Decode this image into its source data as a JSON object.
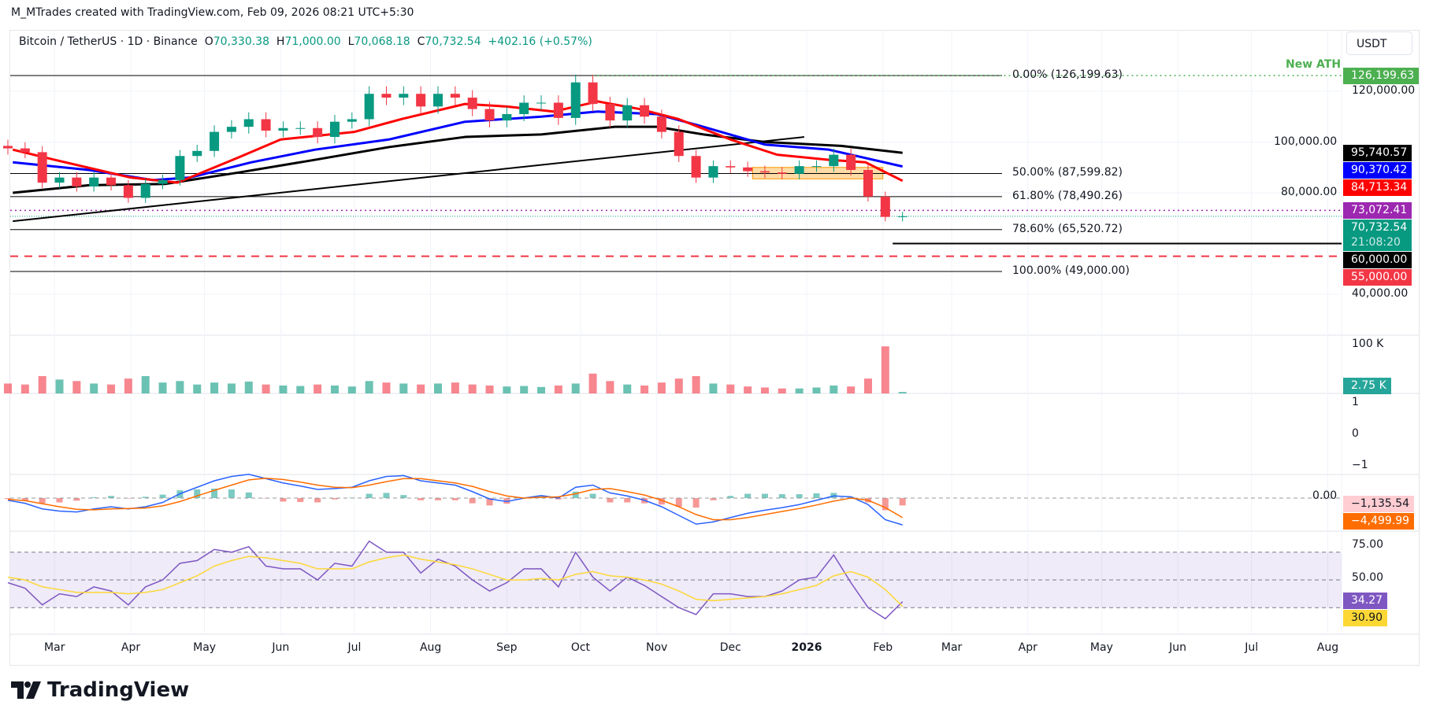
{
  "credit": "M_MTrades created with TradingView.com, Feb 09, 2026 08:21 UTC+5:30",
  "legend": {
    "symbol": "Bitcoin / TetherUS · 1D · Binance",
    "o_label": "O",
    "o": "70,330.38",
    "h_label": "H",
    "h": "71,000.00",
    "l_label": "L",
    "l": "70,068.18",
    "c_label": "C",
    "c": "70,732.54",
    "change": "+402.16 (+0.57%)"
  },
  "currency": "USDT",
  "annotation": "New ATH",
  "logo": "TradingView",
  "price_tags": [
    {
      "text": "126,199.63",
      "price": 126199.63,
      "color": "#4caf50"
    },
    {
      "text": "95,740.57",
      "price": 95740.57,
      "color": "#000000"
    },
    {
      "text": "90,370.42",
      "price": 90370.42,
      "color": "#0000ff"
    },
    {
      "text": "84,713.34",
      "price": 84713.34,
      "color": "#ff0000"
    },
    {
      "text": "73,072.41",
      "price": 73072.41,
      "color": "#9c27b0"
    },
    {
      "text": "70,732.54",
      "price": 70732.54,
      "color": "#089981",
      "sub": "21:08:20"
    },
    {
      "text": "60,000.00",
      "price": 60000,
      "color": "#000000"
    },
    {
      "text": "55,000.00",
      "price": 55000,
      "color": "#f23645"
    }
  ],
  "price_axis": [
    {
      "text": "120,000.00",
      "price": 120000
    },
    {
      "text": "100,000.00",
      "price": 100000
    },
    {
      "text": "80,000.00",
      "price": 80000
    },
    {
      "text": "40,000.00",
      "price": 40000
    }
  ],
  "fib_levels": [
    {
      "text": "0.00% (126,199.63)",
      "price": 126199.63
    },
    {
      "text": "50.00% (87,599.82)",
      "price": 87599.82
    },
    {
      "text": "61.80% (78,490.26)",
      "price": 78490.26
    },
    {
      "text": "78.60% (65,520.72)",
      "price": 65520.72
    },
    {
      "text": "100.00% (49,000.00)",
      "price": 49000
    }
  ],
  "volume_axis": {
    "label": "100 K",
    "tag": "2.75 K",
    "tag_color": "#26a69a"
  },
  "empty_pane_axis": [
    "1",
    "0",
    "−1"
  ],
  "macd_axis": {
    "zero": "0.00",
    "hist_tag": "−1,135.54",
    "hist_color": "#ffcdd2",
    "signal_tag": "−4,499.99",
    "signal_color": "#ff6d00"
  },
  "rsi_axis": {
    "labels": [
      "75.00",
      "50.00"
    ],
    "rsi_tag": "34.27",
    "rsi_color": "#7e57c2",
    "ma_tag": "30.90",
    "ma_color": "#fdd835"
  },
  "months": [
    {
      "text": "Mar",
      "date": "2025-03-01"
    },
    {
      "text": "Apr",
      "date": "2025-04-01"
    },
    {
      "text": "May",
      "date": "2025-05-01"
    },
    {
      "text": "Jun",
      "date": "2025-06-01"
    },
    {
      "text": "Jul",
      "date": "2025-07-01"
    },
    {
      "text": "Aug",
      "date": "2025-08-01"
    },
    {
      "text": "Sep",
      "date": "2025-09-01"
    },
    {
      "text": "Oct",
      "date": "2025-10-01"
    },
    {
      "text": "Nov",
      "date": "2025-11-01"
    },
    {
      "text": "Dec",
      "date": "2025-12-01"
    },
    {
      "text": "2026",
      "date": "2026-01-01",
      "bold": true
    },
    {
      "text": "Feb",
      "date": "2026-02-01"
    },
    {
      "text": "Mar",
      "date": "2026-03-01"
    },
    {
      "text": "Apr",
      "date": "2026-04-01"
    },
    {
      "text": "May",
      "date": "2026-05-01"
    },
    {
      "text": "Jun",
      "date": "2026-06-01"
    },
    {
      "text": "Jul",
      "date": "2026-07-01"
    },
    {
      "text": "Aug",
      "date": "2026-08-01"
    }
  ],
  "chart_data": {
    "type": "candlestick",
    "scale": "linear",
    "ylim": [
      35000,
      130000
    ],
    "up_color": "#089981",
    "down_color": "#f23645",
    "dates": [
      "2025-02-10",
      "2025-02-17",
      "2025-02-24",
      "2025-03-03",
      "2025-03-10",
      "2025-03-17",
      "2025-03-24",
      "2025-03-31",
      "2025-04-07",
      "2025-04-14",
      "2025-04-21",
      "2025-04-28",
      "2025-05-05",
      "2025-05-12",
      "2025-05-19",
      "2025-05-26",
      "2025-06-02",
      "2025-06-09",
      "2025-06-16",
      "2025-06-23",
      "2025-06-30",
      "2025-07-07",
      "2025-07-14",
      "2025-07-21",
      "2025-07-28",
      "2025-08-04",
      "2025-08-11",
      "2025-08-18",
      "2025-08-25",
      "2025-09-01",
      "2025-09-08",
      "2025-09-15",
      "2025-09-22",
      "2025-09-29",
      "2025-10-06",
      "2025-10-13",
      "2025-10-20",
      "2025-10-27",
      "2025-11-03",
      "2025-11-10",
      "2025-11-17",
      "2025-11-24",
      "2025-12-01",
      "2025-12-08",
      "2025-12-15",
      "2025-12-22",
      "2025-12-29",
      "2026-01-05",
      "2026-01-12",
      "2026-01-19",
      "2026-01-26",
      "2026-02-02",
      "2026-02-09"
    ],
    "close": [
      97500,
      96000,
      84000,
      86000,
      82500,
      86000,
      83000,
      78000,
      83500,
      85000,
      94500,
      96500,
      104000,
      106000,
      109000,
      104500,
      105500,
      105500,
      102000,
      108000,
      109000,
      119000,
      117500,
      119000,
      114000,
      119000,
      117500,
      113000,
      108500,
      111000,
      115500,
      115500,
      109500,
      123500,
      115000,
      108500,
      114500,
      110000,
      104000,
      94500,
      86000,
      90500,
      90000,
      88500,
      88000,
      87500,
      90500,
      90500,
      95000,
      89000,
      78500,
      70500,
      70732.54
    ],
    "volume_k": [
      20,
      18,
      35,
      28,
      25,
      20,
      18,
      30,
      35,
      22,
      25,
      18,
      22,
      20,
      24,
      18,
      16,
      15,
      18,
      16,
      14,
      25,
      22,
      20,
      18,
      20,
      22,
      18,
      16,
      14,
      15,
      13,
      16,
      20,
      40,
      25,
      18,
      16,
      22,
      30,
      35,
      20,
      18,
      14,
      12,
      10,
      10,
      12,
      16,
      14,
      30,
      95,
      3
    ],
    "macd": [
      -500,
      -1200,
      -2500,
      -3000,
      -3200,
      -2500,
      -2000,
      -2500,
      -2000,
      -1000,
      1000,
      2500,
      4000,
      5000,
      5500,
      4500,
      3500,
      2800,
      2000,
      2200,
      2500,
      4000,
      5000,
      5200,
      4000,
      3500,
      3000,
      1500,
      -200,
      -800,
      0,
      600,
      0,
      2500,
      3000,
      1200,
      500,
      -500,
      -2000,
      -4000,
      -6000,
      -5500,
      -4500,
      -3500,
      -2800,
      -2200,
      -1500,
      -500,
      500,
      300,
      -1500,
      -5000,
      -6200
    ],
    "macd_signal": [
      -300,
      -600,
      -1300,
      -2000,
      -2600,
      -2700,
      -2500,
      -2400,
      -2300,
      -1800,
      -800,
      500,
      1800,
      3000,
      4200,
      4600,
      4300,
      3700,
      3000,
      2500,
      2400,
      3000,
      3800,
      4500,
      4500,
      4000,
      3500,
      2700,
      1500,
      500,
      0,
      200,
      300,
      1000,
      2000,
      2200,
      1500,
      700,
      -500,
      -2000,
      -3800,
      -5000,
      -5000,
      -4500,
      -3800,
      -3100,
      -2400,
      -1600,
      -700,
      0,
      -500,
      -2200,
      -4500
    ],
    "rsi": [
      48,
      44,
      32,
      40,
      38,
      45,
      42,
      32,
      45,
      50,
      62,
      64,
      72,
      70,
      74,
      60,
      58,
      58,
      50,
      62,
      60,
      78,
      70,
      70,
      55,
      65,
      60,
      50,
      42,
      48,
      58,
      58,
      45,
      70,
      52,
      42,
      52,
      46,
      38,
      30,
      25,
      40,
      40,
      38,
      38,
      42,
      50,
      52,
      68,
      48,
      30,
      22,
      34.27
    ],
    "rsi_ma": [
      52,
      50,
      45,
      43,
      41,
      41,
      41,
      40,
      41,
      43,
      48,
      53,
      60,
      64,
      67,
      66,
      64,
      62,
      58,
      58,
      58,
      63,
      66,
      68,
      65,
      63,
      61,
      58,
      54,
      50,
      50,
      51,
      50,
      54,
      56,
      53,
      52,
      50,
      47,
      42,
      36,
      35,
      36,
      37,
      38,
      40,
      43,
      46,
      53,
      56,
      52,
      43,
      30.9
    ],
    "ma_red": [
      [
        "2025-02-12",
        97000
      ],
      [
        "2025-03-01",
        93000
      ],
      [
        "2025-04-01",
        86000
      ],
      [
        "2025-04-20",
        84000
      ],
      [
        "2025-05-15",
        94000
      ],
      [
        "2025-06-01",
        101000
      ],
      [
        "2025-07-01",
        104000
      ],
      [
        "2025-07-20",
        109000
      ],
      [
        "2025-08-15",
        115000
      ],
      [
        "2025-09-01",
        114000
      ],
      [
        "2025-09-20",
        112000
      ],
      [
        "2025-10-08",
        116000
      ],
      [
        "2025-10-25",
        113000
      ],
      [
        "2025-11-10",
        109000
      ],
      [
        "2025-12-01",
        101000
      ],
      [
        "2025-12-20",
        95000
      ],
      [
        "2026-01-10",
        93000
      ],
      [
        "2026-01-25",
        92000
      ],
      [
        "2026-02-09",
        84713.34
      ]
    ],
    "ma_blue": [
      [
        "2025-02-12",
        92000
      ],
      [
        "2025-03-15",
        89000
      ],
      [
        "2025-04-10",
        85000
      ],
      [
        "2025-04-25",
        86000
      ],
      [
        "2025-05-20",
        92000
      ],
      [
        "2025-06-15",
        97000
      ],
      [
        "2025-07-15",
        101000
      ],
      [
        "2025-08-15",
        108000
      ],
      [
        "2025-09-15",
        110000
      ],
      [
        "2025-10-08",
        112000
      ],
      [
        "2025-11-01",
        111000
      ],
      [
        "2025-11-20",
        106000
      ],
      [
        "2025-12-15",
        99000
      ],
      [
        "2026-01-10",
        97000
      ],
      [
        "2026-02-09",
        90370.42
      ]
    ],
    "ma_black": [
      [
        "2025-02-12",
        80000
      ],
      [
        "2025-03-15",
        83000
      ],
      [
        "2025-04-15",
        83500
      ],
      [
        "2025-05-15",
        88000
      ],
      [
        "2025-06-15",
        93000
      ],
      [
        "2025-07-15",
        98000
      ],
      [
        "2025-08-15",
        102000
      ],
      [
        "2025-09-15",
        103000
      ],
      [
        "2025-10-15",
        106000
      ],
      [
        "2025-11-01",
        106000
      ],
      [
        "2025-11-20",
        103000
      ],
      [
        "2025-12-15",
        100000
      ],
      [
        "2026-01-15",
        98500
      ],
      [
        "2026-02-09",
        95740.57
      ]
    ],
    "trendline": [
      [
        "2025-02-12",
        68800
      ],
      [
        "2025-12-31",
        102000
      ]
    ],
    "range_box": {
      "from": "2025-12-10",
      "to": "2026-02-01",
      "low": 85500,
      "high": 90000,
      "color": "#ff9800"
    }
  }
}
